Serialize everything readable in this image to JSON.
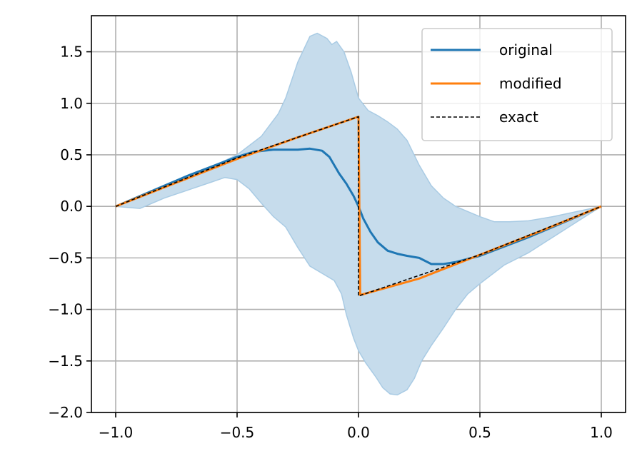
{
  "chart_data": {
    "type": "line",
    "title": "",
    "xlabel": "",
    "ylabel": "",
    "xlim": [
      -1.1,
      1.1
    ],
    "ylim": [
      -2.0,
      1.85
    ],
    "grid": true,
    "legend_position": "top-right",
    "xticks": [
      {
        "value": -1.0,
        "label": "−1.0"
      },
      {
        "value": -0.5,
        "label": "−0.5"
      },
      {
        "value": 0.0,
        "label": "0.0"
      },
      {
        "value": 0.5,
        "label": "0.5"
      },
      {
        "value": 1.0,
        "label": "1.0"
      }
    ],
    "yticks": [
      {
        "value": 1.5,
        "label": "1.5"
      },
      {
        "value": 1.0,
        "label": "1.0"
      },
      {
        "value": 0.5,
        "label": "0.5"
      },
      {
        "value": 0.0,
        "label": "0.0"
      },
      {
        "value": -0.5,
        "label": "−0.5"
      },
      {
        "value": -1.0,
        "label": "−1.0"
      },
      {
        "value": -1.5,
        "label": "−1.5"
      },
      {
        "value": -2.0,
        "label": "−2.0"
      }
    ],
    "band": {
      "color": "#c6dcec",
      "edge_color": "#a9cbe4",
      "upper": [
        [
          -1.0,
          0.0
        ],
        [
          -0.9,
          0.1
        ],
        [
          -0.8,
          0.19
        ],
        [
          -0.7,
          0.28
        ],
        [
          -0.6,
          0.39
        ],
        [
          -0.5,
          0.5
        ],
        [
          -0.4,
          0.68
        ],
        [
          -0.33,
          0.9
        ],
        [
          -0.3,
          1.05
        ],
        [
          -0.25,
          1.4
        ],
        [
          -0.2,
          1.65
        ],
        [
          -0.17,
          1.68
        ],
        [
          -0.13,
          1.63
        ],
        [
          -0.11,
          1.57
        ],
        [
          -0.09,
          1.6
        ],
        [
          -0.06,
          1.5
        ],
        [
          -0.03,
          1.3
        ],
        [
          0.0,
          1.05
        ],
        [
          0.04,
          0.93
        ],
        [
          0.08,
          0.88
        ],
        [
          0.12,
          0.82
        ],
        [
          0.16,
          0.75
        ],
        [
          0.2,
          0.64
        ],
        [
          0.25,
          0.4
        ],
        [
          0.3,
          0.2
        ],
        [
          0.35,
          0.08
        ],
        [
          0.4,
          0.0
        ],
        [
          0.45,
          -0.05
        ],
        [
          0.5,
          -0.1
        ],
        [
          0.56,
          -0.15
        ],
        [
          0.62,
          -0.15
        ],
        [
          0.7,
          -0.14
        ],
        [
          0.8,
          -0.1
        ],
        [
          0.9,
          -0.05
        ],
        [
          1.0,
          0.0
        ]
      ],
      "lower": [
        [
          -1.0,
          0.0
        ],
        [
          -0.9,
          -0.02
        ],
        [
          -0.8,
          0.08
        ],
        [
          -0.7,
          0.16
        ],
        [
          -0.6,
          0.24
        ],
        [
          -0.55,
          0.28
        ],
        [
          -0.5,
          0.26
        ],
        [
          -0.45,
          0.17
        ],
        [
          -0.4,
          0.03
        ],
        [
          -0.35,
          -0.1
        ],
        [
          -0.3,
          -0.2
        ],
        [
          -0.25,
          -0.4
        ],
        [
          -0.2,
          -0.58
        ],
        [
          -0.15,
          -0.65
        ],
        [
          -0.1,
          -0.72
        ],
        [
          -0.07,
          -0.85
        ],
        [
          -0.05,
          -1.05
        ],
        [
          -0.02,
          -1.28
        ],
        [
          0.0,
          -1.4
        ],
        [
          0.03,
          -1.52
        ],
        [
          0.07,
          -1.65
        ],
        [
          0.1,
          -1.76
        ],
        [
          0.13,
          -1.82
        ],
        [
          0.16,
          -1.83
        ],
        [
          0.2,
          -1.78
        ],
        [
          0.23,
          -1.67
        ],
        [
          0.26,
          -1.5
        ],
        [
          0.3,
          -1.35
        ],
        [
          0.35,
          -1.18
        ],
        [
          0.4,
          -1.0
        ],
        [
          0.45,
          -0.85
        ],
        [
          0.5,
          -0.75
        ],
        [
          0.6,
          -0.57
        ],
        [
          0.7,
          -0.45
        ],
        [
          0.8,
          -0.3
        ],
        [
          0.9,
          -0.15
        ],
        [
          1.0,
          0.0
        ]
      ]
    },
    "series": [
      {
        "name": "original",
        "color": "#1f77b4",
        "style": "solid",
        "points": [
          [
            -1.0,
            0.0
          ],
          [
            -0.9,
            0.1
          ],
          [
            -0.8,
            0.2
          ],
          [
            -0.7,
            0.3
          ],
          [
            -0.6,
            0.39
          ],
          [
            -0.5,
            0.48
          ],
          [
            -0.43,
            0.53
          ],
          [
            -0.35,
            0.55
          ],
          [
            -0.3,
            0.55
          ],
          [
            -0.25,
            0.55
          ],
          [
            -0.2,
            0.56
          ],
          [
            -0.15,
            0.54
          ],
          [
            -0.12,
            0.48
          ],
          [
            -0.1,
            0.4
          ],
          [
            -0.08,
            0.32
          ],
          [
            -0.05,
            0.22
          ],
          [
            -0.02,
            0.1
          ],
          [
            0.0,
            0.0
          ],
          [
            0.02,
            -0.12
          ],
          [
            0.05,
            -0.25
          ],
          [
            0.08,
            -0.35
          ],
          [
            0.12,
            -0.43
          ],
          [
            0.16,
            -0.46
          ],
          [
            0.2,
            -0.48
          ],
          [
            0.25,
            -0.5
          ],
          [
            0.3,
            -0.56
          ],
          [
            0.35,
            -0.56
          ],
          [
            0.4,
            -0.54
          ],
          [
            0.5,
            -0.48
          ],
          [
            0.6,
            -0.39
          ],
          [
            0.7,
            -0.3
          ],
          [
            0.8,
            -0.2
          ],
          [
            0.9,
            -0.1
          ],
          [
            1.0,
            0.0
          ]
        ]
      },
      {
        "name": "modified",
        "color": "#ff7f0e",
        "style": "solid",
        "points": [
          [
            -1.0,
            0.0
          ],
          [
            -0.5,
            0.46
          ],
          [
            -0.25,
            0.67
          ],
          [
            0.0,
            0.87
          ],
          [
            0.007,
            -0.86
          ],
          [
            0.25,
            -0.7
          ],
          [
            0.5,
            -0.47
          ],
          [
            0.75,
            -0.24
          ],
          [
            1.0,
            0.0
          ]
        ]
      },
      {
        "name": "exact",
        "color": "#000000",
        "style": "dashed",
        "points": [
          [
            -1.0,
            0.0
          ],
          [
            -0.5,
            0.47
          ],
          [
            0.0,
            0.87
          ],
          [
            0.0,
            -0.87
          ],
          [
            0.5,
            -0.47
          ],
          [
            1.0,
            0.0
          ]
        ]
      }
    ]
  }
}
